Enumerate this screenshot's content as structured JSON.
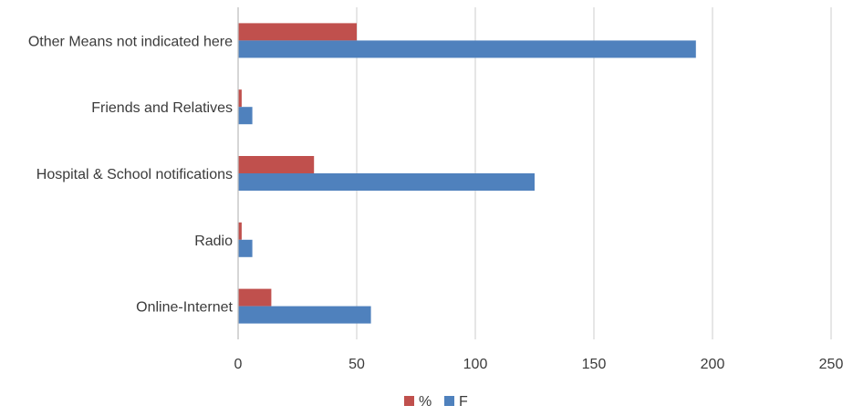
{
  "chart_data": {
    "type": "bar",
    "orientation": "horizontal",
    "categories": [
      "Other Means not indicated here",
      "Friends and Relatives",
      "Hospital & School notifications",
      "Radio",
      "Online-Internet"
    ],
    "series": [
      {
        "name": "%",
        "color": "#c0504d",
        "values": [
          50,
          1.5,
          32,
          1.5,
          14
        ]
      },
      {
        "name": "F",
        "color": "#4f81bd",
        "values": [
          193,
          6,
          125,
          6,
          56
        ]
      }
    ],
    "xlim": [
      0,
      250
    ],
    "xticks": [
      "0",
      "50",
      "100",
      "150",
      "200",
      "250"
    ],
    "title": "",
    "xlabel": "",
    "ylabel": "",
    "grid": "vertical",
    "legend_position": "bottom"
  }
}
